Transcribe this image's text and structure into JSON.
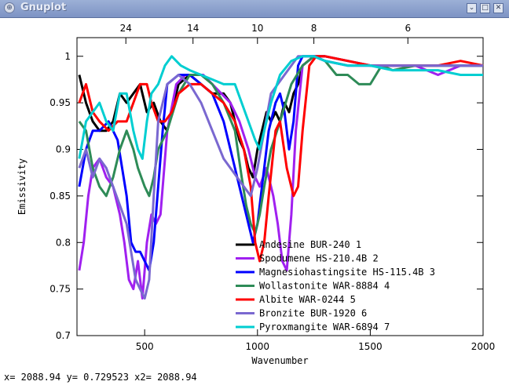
{
  "window": {
    "title": "Gnuplot",
    "buttons": [
      "minimize",
      "maximize",
      "close"
    ]
  },
  "status": {
    "text": "x= 2088.94 y= 0.729523 x2= 2088.94"
  },
  "chart_data": {
    "type": "line",
    "title": "",
    "xlabel": "Wavenumber",
    "ylabel": "Emissivity",
    "xlim": [
      200,
      2000
    ],
    "ylim": [
      0.7,
      1.02
    ],
    "xticks": [
      500,
      1000,
      1500,
      2000
    ],
    "yticks": [
      0.7,
      0.75,
      0.8,
      0.85,
      0.9,
      0.95,
      1
    ],
    "ytick_labels": [
      "0.7",
      "0.75",
      "0.8",
      "0.85",
      "0.9",
      "0.95",
      "1"
    ],
    "x2ticks": [
      24,
      14,
      10,
      8,
      6
    ],
    "x2_meaning": "wavelength (10000/wavenumber)",
    "legend_position": "bottom-center",
    "grid": false,
    "series": [
      {
        "name": "Andesine BUR-240 1",
        "color": "#000000",
        "x": [
          210,
          240,
          270,
          300,
          330,
          360,
          390,
          420,
          450,
          480,
          510,
          540,
          570,
          600,
          650,
          700,
          750,
          800,
          850,
          880,
          900,
          920,
          940,
          960,
          980,
          1000,
          1020,
          1040,
          1060,
          1080,
          1100,
          1120,
          1140,
          1160,
          1180,
          1200,
          1250,
          1300,
          1400,
          1500,
          1600,
          1700,
          1800,
          1900,
          2000
        ],
        "y": [
          0.98,
          0.95,
          0.93,
          0.92,
          0.92,
          0.93,
          0.96,
          0.95,
          0.96,
          0.97,
          0.94,
          0.95,
          0.93,
          0.92,
          0.97,
          0.98,
          0.97,
          0.96,
          0.96,
          0.95,
          0.93,
          0.91,
          0.9,
          0.88,
          0.87,
          0.9,
          0.92,
          0.94,
          0.93,
          0.94,
          0.93,
          0.95,
          0.94,
          0.96,
          0.97,
          0.99,
          1.0,
          1.0,
          0.995,
          0.99,
          0.99,
          0.99,
          0.99,
          0.99,
          0.99
        ]
      },
      {
        "name": "Spodumene HS-210.4B 2",
        "color": "#a020f0",
        "x": [
          210,
          230,
          250,
          270,
          300,
          330,
          360,
          390,
          410,
          430,
          450,
          470,
          490,
          510,
          530,
          550,
          570,
          600,
          640,
          680,
          720,
          760,
          800,
          840,
          880,
          920,
          960,
          990,
          1010,
          1040,
          1070,
          1090,
          1110,
          1130,
          1150,
          1170,
          1200,
          1250,
          1300,
          1400,
          1500,
          1600,
          1700,
          1800,
          1900,
          2000
        ],
        "y": [
          0.77,
          0.8,
          0.85,
          0.88,
          0.89,
          0.87,
          0.86,
          0.83,
          0.8,
          0.76,
          0.75,
          0.78,
          0.74,
          0.8,
          0.83,
          0.82,
          0.83,
          0.92,
          0.97,
          0.98,
          0.98,
          0.98,
          0.97,
          0.96,
          0.95,
          0.93,
          0.9,
          0.87,
          0.86,
          0.88,
          0.85,
          0.82,
          0.78,
          0.77,
          0.83,
          0.92,
          0.99,
          1.0,
          1.0,
          0.995,
          0.99,
          0.99,
          0.99,
          0.98,
          0.99,
          0.99
        ]
      },
      {
        "name": "Magnesiohastingsite HS-115.4B 3",
        "color": "#0000ff",
        "x": [
          210,
          240,
          270,
          300,
          340,
          380,
          420,
          440,
          460,
          480,
          500,
          520,
          540,
          560,
          580,
          600,
          650,
          700,
          750,
          800,
          850,
          900,
          930,
          960,
          980,
          1000,
          1020,
          1050,
          1080,
          1100,
          1120,
          1140,
          1160,
          1180,
          1200,
          1250,
          1300,
          1400,
          1500,
          1600,
          1700,
          1800,
          1900,
          2000
        ],
        "y": [
          0.86,
          0.9,
          0.92,
          0.92,
          0.93,
          0.91,
          0.85,
          0.8,
          0.79,
          0.79,
          0.78,
          0.77,
          0.8,
          0.86,
          0.92,
          0.97,
          0.98,
          0.98,
          0.97,
          0.96,
          0.93,
          0.88,
          0.85,
          0.82,
          0.8,
          0.82,
          0.86,
          0.92,
          0.95,
          0.96,
          0.94,
          0.9,
          0.93,
          0.99,
          1.0,
          1.0,
          0.995,
          0.99,
          0.99,
          0.99,
          0.99,
          0.99,
          0.99,
          0.99
        ]
      },
      {
        "name": "Wollastonite WAR-8884 4",
        "color": "#2e8b57",
        "x": [
          210,
          240,
          270,
          300,
          330,
          360,
          390,
          420,
          450,
          470,
          500,
          520,
          540,
          560,
          600,
          650,
          700,
          750,
          800,
          850,
          900,
          930,
          950,
          970,
          990,
          1010,
          1030,
          1060,
          1100,
          1150,
          1200,
          1250,
          1300,
          1350,
          1400,
          1450,
          1500,
          1550,
          1600,
          1700,
          1800,
          1900,
          2000
        ],
        "y": [
          0.93,
          0.92,
          0.88,
          0.86,
          0.85,
          0.87,
          0.9,
          0.92,
          0.9,
          0.88,
          0.86,
          0.85,
          0.87,
          0.9,
          0.92,
          0.96,
          0.98,
          0.98,
          0.97,
          0.95,
          0.92,
          0.87,
          0.84,
          0.82,
          0.81,
          0.83,
          0.86,
          0.9,
          0.93,
          0.97,
          0.99,
          1.0,
          0.995,
          0.98,
          0.98,
          0.97,
          0.97,
          0.99,
          0.985,
          0.99,
          0.99,
          0.99,
          0.99
        ]
      },
      {
        "name": "Albite WAR-0244 5",
        "color": "#ff0000",
        "x": [
          210,
          240,
          270,
          300,
          340,
          380,
          420,
          450,
          480,
          510,
          530,
          560,
          590,
          620,
          650,
          700,
          750,
          800,
          850,
          900,
          940,
          970,
          990,
          1010,
          1030,
          1050,
          1080,
          1100,
          1130,
          1160,
          1180,
          1200,
          1230,
          1260,
          1300,
          1400,
          1500,
          1600,
          1700,
          1800,
          1900,
          2000
        ],
        "y": [
          0.95,
          0.97,
          0.94,
          0.93,
          0.92,
          0.93,
          0.93,
          0.95,
          0.97,
          0.97,
          0.95,
          0.93,
          0.93,
          0.94,
          0.96,
          0.97,
          0.97,
          0.96,
          0.95,
          0.93,
          0.9,
          0.86,
          0.8,
          0.78,
          0.8,
          0.85,
          0.92,
          0.93,
          0.88,
          0.85,
          0.86,
          0.92,
          0.99,
          1.0,
          1.0,
          0.995,
          0.99,
          0.99,
          0.99,
          0.99,
          0.995,
          0.99
        ]
      },
      {
        "name": "Bronzite BUR-1920 6",
        "color": "#7a68d0",
        "x": [
          210,
          240,
          270,
          300,
          330,
          360,
          390,
          420,
          440,
          460,
          480,
          500,
          520,
          540,
          560,
          600,
          650,
          700,
          750,
          800,
          850,
          880,
          910,
          940,
          970,
          1000,
          1030,
          1060,
          1090,
          1120,
          1150,
          1180,
          1200,
          1250,
          1300,
          1400,
          1500,
          1600,
          1700,
          1800,
          1900,
          2000
        ],
        "y": [
          0.88,
          0.9,
          0.87,
          0.89,
          0.88,
          0.86,
          0.84,
          0.82,
          0.79,
          0.76,
          0.75,
          0.74,
          0.76,
          0.85,
          0.93,
          0.97,
          0.98,
          0.97,
          0.95,
          0.92,
          0.89,
          0.88,
          0.87,
          0.86,
          0.85,
          0.88,
          0.92,
          0.96,
          0.97,
          0.98,
          0.99,
          1.0,
          1.0,
          1.0,
          0.995,
          0.99,
          0.99,
          0.99,
          0.99,
          0.99,
          0.99,
          0.99
        ]
      },
      {
        "name": "Pyroxmangite WAR-6894 7",
        "color": "#00ced1",
        "x": [
          210,
          240,
          270,
          300,
          330,
          360,
          390,
          420,
          450,
          470,
          490,
          510,
          530,
          560,
          590,
          620,
          660,
          700,
          750,
          800,
          850,
          900,
          930,
          960,
          990,
          1010,
          1030,
          1060,
          1100,
          1150,
          1200,
          1250,
          1300,
          1400,
          1500,
          1600,
          1700,
          1800,
          1900,
          2000
        ],
        "y": [
          0.89,
          0.93,
          0.94,
          0.95,
          0.93,
          0.92,
          0.96,
          0.96,
          0.92,
          0.9,
          0.89,
          0.93,
          0.96,
          0.97,
          0.99,
          1.0,
          0.99,
          0.985,
          0.98,
          0.975,
          0.97,
          0.97,
          0.95,
          0.93,
          0.91,
          0.9,
          0.92,
          0.95,
          0.98,
          0.995,
          1.0,
          1.0,
          0.995,
          0.99,
          0.99,
          0.985,
          0.985,
          0.985,
          0.98,
          0.98
        ]
      }
    ]
  }
}
